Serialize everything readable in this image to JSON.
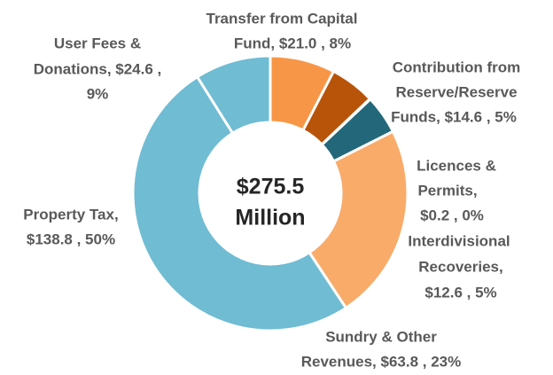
{
  "chart_data": {
    "type": "donut",
    "categories": [
      "Transfer from Capital Fund",
      "Contribution from Reserve/Reserve Funds",
      "Licences & Permits",
      "Interdivisional Recoveries",
      "Sundry & Other Revenues",
      "Property Tax",
      "User Fees & Donations"
    ],
    "values": [
      21.0,
      14.6,
      0.2,
      12.6,
      63.8,
      138.8,
      24.6
    ],
    "labels": [
      [
        "Transfer from Capital",
        "Fund,  $21.0 , 8%"
      ],
      [
        "Contribution from",
        "Reserve/Reserve",
        "Funds,  $14.6 , 5%"
      ],
      [
        "Licences &",
        "Permits,",
        "$0.2 , 0%"
      ],
      [
        "Interdivisional",
        "Recoveries,",
        "$12.6 , 5%"
      ],
      [
        "Sundry & Other",
        "Revenues,  $63.8 , 23%"
      ],
      [
        "Property Tax,",
        "$138.8 , 50%"
      ],
      [
        "User Fees &",
        "Donations,  $24.6 ,",
        "9%"
      ]
    ],
    "colors": [
      "#f79646",
      "#b85409",
      "#4a3c63",
      "#23687a",
      "#f9ab6a",
      "#6fbcd3",
      "#6fbcd3"
    ],
    "center_label": [
      "$275.5",
      "Million"
    ]
  }
}
